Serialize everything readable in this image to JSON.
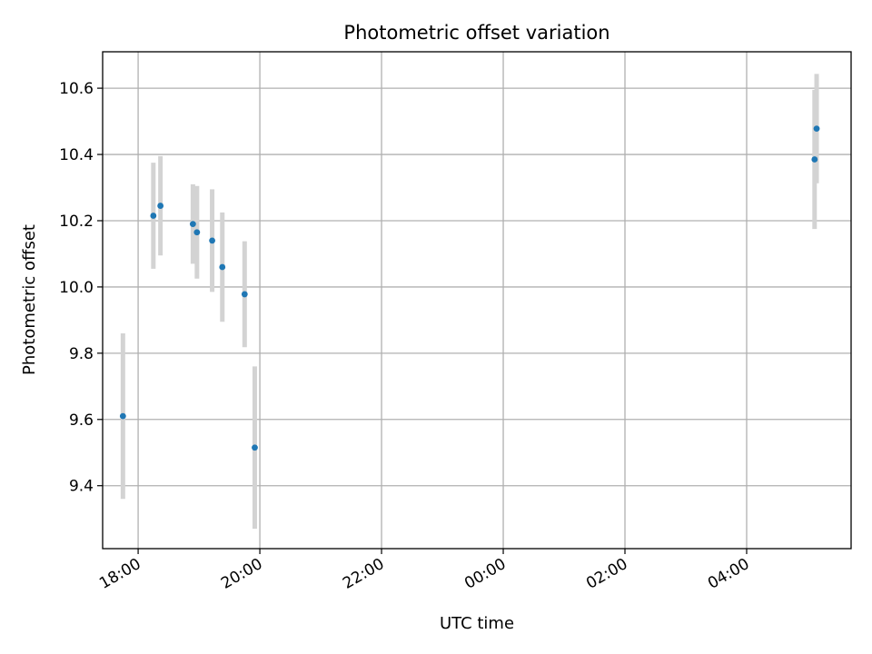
{
  "chart_data": {
    "type": "scatter",
    "title": "Photometric offset variation",
    "xlabel": "UTC time",
    "ylabel": "Photometric offset",
    "x_unit": "UTC clock time (HH:MM), spanning midnight",
    "xlim": [
      "17:25",
      "05:43"
    ],
    "ylim": [
      9.21,
      10.71
    ],
    "x_ticks": [
      "18:00",
      "20:00",
      "22:00",
      "00:00",
      "02:00",
      "04:00"
    ],
    "y_ticks": [
      9.4,
      9.6,
      9.8,
      10.0,
      10.2,
      10.4,
      10.6
    ],
    "grid": true,
    "colors": {
      "points": "#1f77b4",
      "errorbars": "#d3d3d3",
      "grid": "#b0b0b0"
    },
    "points": [
      {
        "x": "17:45",
        "y": 9.61,
        "err": 0.25
      },
      {
        "x": "18:15",
        "y": 10.215,
        "err": 0.16
      },
      {
        "x": "18:22",
        "y": 10.245,
        "err": 0.15
      },
      {
        "x": "18:54",
        "y": 10.19,
        "err": 0.12
      },
      {
        "x": "18:58",
        "y": 10.165,
        "err": 0.14
      },
      {
        "x": "19:13",
        "y": 10.14,
        "err": 0.155
      },
      {
        "x": "19:23",
        "y": 10.06,
        "err": 0.165
      },
      {
        "x": "19:45",
        "y": 9.978,
        "err": 0.16
      },
      {
        "x": "19:55",
        "y": 9.515,
        "err": 0.245
      },
      {
        "x": "05:07",
        "y": 10.385,
        "err": 0.21
      },
      {
        "x": "05:09",
        "y": 10.478,
        "err": 0.165
      }
    ]
  }
}
